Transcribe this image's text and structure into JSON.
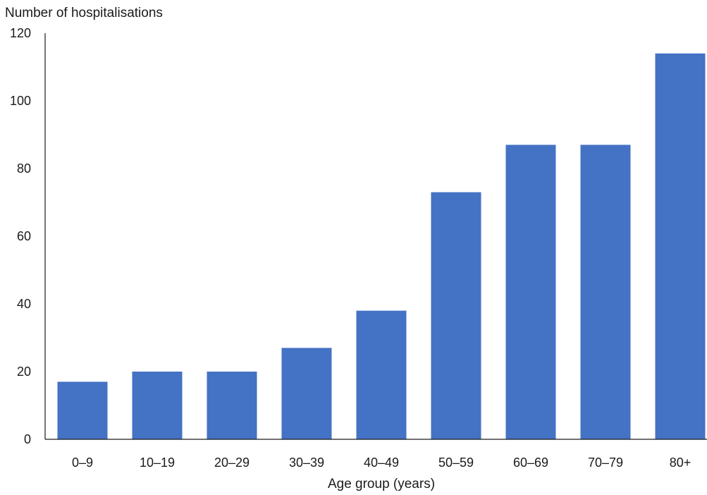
{
  "chart_data": {
    "type": "bar",
    "title": "",
    "ylabel": "Number of hospitalisations",
    "xlabel": "Age group (years)",
    "categories": [
      "0–9",
      "10–19",
      "20–29",
      "30–39",
      "40–49",
      "50–59",
      "60–69",
      "70–79",
      "80+"
    ],
    "values": [
      17,
      20,
      20,
      27,
      38,
      73,
      87,
      87,
      114
    ],
    "ylim": [
      0,
      120
    ],
    "yticks": [
      "0",
      "20",
      "40",
      "60",
      "80",
      "100",
      "120"
    ],
    "grid": false,
    "legend": "none",
    "bar_color": "#4472C4",
    "axis_color": "#1a1a1a"
  }
}
